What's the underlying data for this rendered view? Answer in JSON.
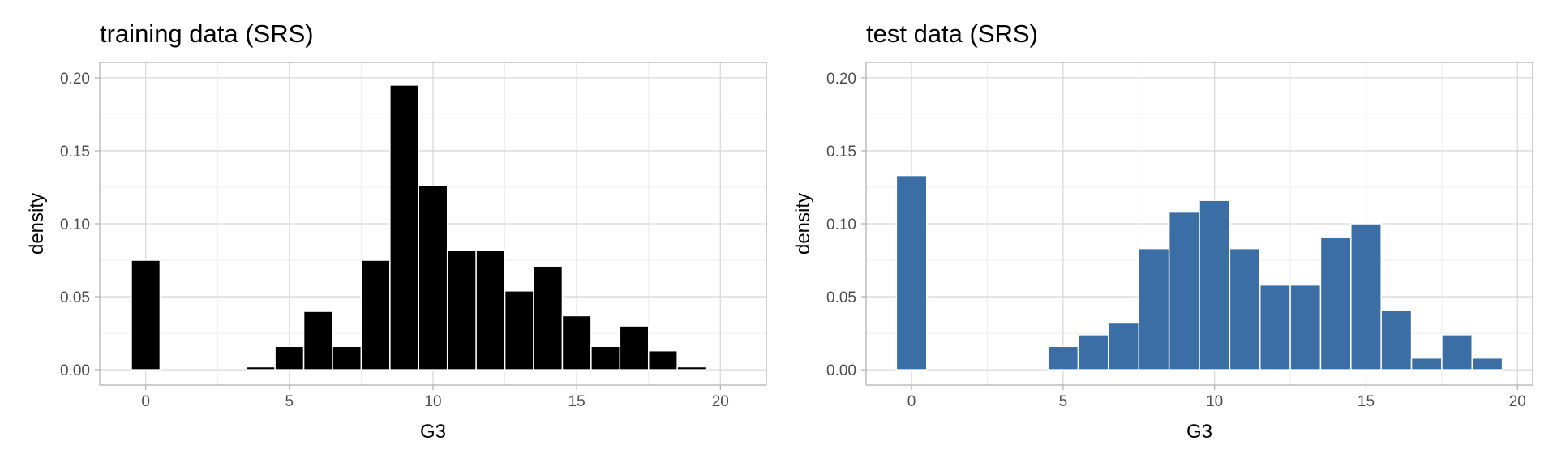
{
  "chart_data": [
    {
      "type": "bar",
      "title": "training data (SRS)",
      "xlabel": "G3",
      "ylabel": "density",
      "xlim": [
        -1.6,
        21.6
      ],
      "ylim": [
        -0.0105,
        0.2105
      ],
      "x_ticks": [
        0,
        5,
        10,
        15,
        20
      ],
      "x_tick_labels": [
        "0",
        "5",
        "10",
        "15",
        "20"
      ],
      "y_ticks": [
        0.0,
        0.05,
        0.1,
        0.15,
        0.2
      ],
      "y_tick_labels": [
        "0.00",
        "0.05",
        "0.10",
        "0.15",
        "0.20"
      ],
      "grid": true,
      "bar_color": "#000000",
      "bar_width": 1.0,
      "x": [
        0,
        3,
        4,
        5,
        6,
        7,
        8,
        9,
        10,
        11,
        12,
        13,
        14,
        15,
        16,
        17,
        18,
        19,
        20
      ],
      "values": [
        0.075,
        0.0,
        0.002,
        0.016,
        0.04,
        0.016,
        0.075,
        0.195,
        0.126,
        0.082,
        0.082,
        0.054,
        0.071,
        0.037,
        0.016,
        0.03,
        0.013,
        0.002,
        0.0
      ]
    },
    {
      "type": "bar",
      "title": "test data (SRS)",
      "xlabel": "G3",
      "ylabel": "density",
      "xlim": [
        -1.5,
        20.5
      ],
      "ylim": [
        -0.0105,
        0.2105
      ],
      "x_ticks": [
        0,
        5,
        10,
        15,
        20
      ],
      "x_tick_labels": [
        "0",
        "5",
        "10",
        "15",
        "20"
      ],
      "y_ticks": [
        0.0,
        0.05,
        0.1,
        0.15,
        0.2
      ],
      "y_tick_labels": [
        "0.00",
        "0.05",
        "0.10",
        "0.15",
        "0.20"
      ],
      "grid": true,
      "bar_color": "#3a6ea5",
      "bar_width": 1.0,
      "x": [
        0,
        5,
        6,
        7,
        8,
        9,
        10,
        11,
        12,
        13,
        14,
        15,
        16,
        17,
        18,
        19
      ],
      "values": [
        0.133,
        0.016,
        0.024,
        0.032,
        0.083,
        0.108,
        0.116,
        0.083,
        0.058,
        0.058,
        0.091,
        0.1,
        0.041,
        0.008,
        0.024,
        0.008
      ]
    }
  ]
}
